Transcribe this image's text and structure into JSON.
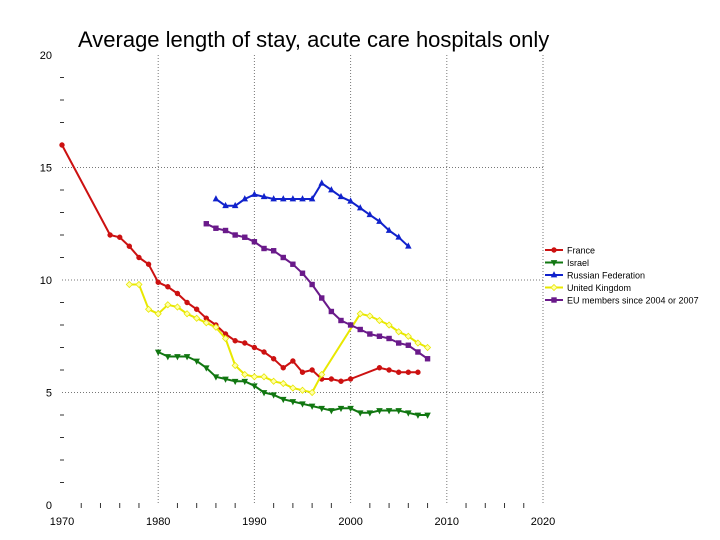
{
  "chart_data": {
    "type": "line",
    "title": "Average length of stay, acute care hospitals only",
    "xlabel": "",
    "ylabel": "",
    "xlim": [
      1970,
      2020
    ],
    "ylim": [
      0,
      20
    ],
    "x_ticks": [
      1970,
      1980,
      1990,
      2000,
      2010,
      2020
    ],
    "y_ticks": [
      0,
      5,
      10,
      15,
      20
    ],
    "grid": true,
    "legend_position": "right",
    "series": [
      {
        "name": "France",
        "color": "#cc1111",
        "marker": "circle",
        "points": [
          [
            1970,
            16.0
          ],
          [
            1975,
            12.0
          ],
          [
            1976,
            11.9
          ],
          [
            1977,
            11.5
          ],
          [
            1978,
            11.0
          ],
          [
            1979,
            10.7
          ],
          [
            1980,
            9.9
          ],
          [
            1981,
            9.7
          ],
          [
            1982,
            9.4
          ],
          [
            1983,
            9.0
          ],
          [
            1984,
            8.7
          ],
          [
            1985,
            8.3
          ],
          [
            1986,
            8.0
          ],
          [
            1987,
            7.6
          ],
          [
            1988,
            7.3
          ],
          [
            1989,
            7.2
          ],
          [
            1990,
            7.0
          ],
          [
            1991,
            6.8
          ],
          [
            1992,
            6.5
          ],
          [
            1993,
            6.1
          ],
          [
            1994,
            6.4
          ],
          [
            1995,
            5.9
          ],
          [
            1996,
            6.0
          ],
          [
            1997,
            5.6
          ],
          [
            1998,
            5.6
          ],
          [
            1999,
            5.5
          ],
          [
            2000,
            5.6
          ],
          [
            2003,
            6.1
          ],
          [
            2004,
            6.0
          ],
          [
            2005,
            5.9
          ],
          [
            2006,
            5.9
          ],
          [
            2007,
            5.9
          ]
        ]
      },
      {
        "name": "Israel",
        "color": "#117711",
        "marker": "triangle-down",
        "points": [
          [
            1980,
            6.8
          ],
          [
            1981,
            6.6
          ],
          [
            1982,
            6.6
          ],
          [
            1983,
            6.6
          ],
          [
            1984,
            6.4
          ],
          [
            1985,
            6.1
          ],
          [
            1986,
            5.7
          ],
          [
            1987,
            5.6
          ],
          [
            1988,
            5.5
          ],
          [
            1989,
            5.5
          ],
          [
            1990,
            5.3
          ],
          [
            1991,
            5.0
          ],
          [
            1992,
            4.9
          ],
          [
            1993,
            4.7
          ],
          [
            1994,
            4.6
          ],
          [
            1995,
            4.5
          ],
          [
            1996,
            4.4
          ],
          [
            1997,
            4.3
          ],
          [
            1998,
            4.2
          ],
          [
            1999,
            4.3
          ],
          [
            2000,
            4.3
          ],
          [
            2001,
            4.1
          ],
          [
            2002,
            4.1
          ],
          [
            2003,
            4.2
          ],
          [
            2004,
            4.2
          ],
          [
            2005,
            4.2
          ],
          [
            2006,
            4.1
          ],
          [
            2007,
            4.0
          ],
          [
            2008,
            4.0
          ]
        ]
      },
      {
        "name": "Russian Federation",
        "color": "#1122cc",
        "marker": "triangle-up",
        "points": [
          [
            1986,
            13.6
          ],
          [
            1987,
            13.3
          ],
          [
            1988,
            13.3
          ],
          [
            1989,
            13.6
          ],
          [
            1990,
            13.8
          ],
          [
            1991,
            13.7
          ],
          [
            1992,
            13.6
          ],
          [
            1993,
            13.6
          ],
          [
            1994,
            13.6
          ],
          [
            1995,
            13.6
          ],
          [
            1996,
            13.6
          ],
          [
            1997,
            14.3
          ],
          [
            1998,
            14.0
          ],
          [
            1999,
            13.7
          ],
          [
            2000,
            13.5
          ],
          [
            2001,
            13.2
          ],
          [
            2002,
            12.9
          ],
          [
            2003,
            12.6
          ],
          [
            2004,
            12.2
          ],
          [
            2005,
            11.9
          ],
          [
            2006,
            11.5
          ]
        ]
      },
      {
        "name": "United Kingdom",
        "color": "#e8e800",
        "marker": "diamond",
        "points": [
          [
            1977,
            9.8
          ],
          [
            1978,
            9.8
          ],
          [
            1979,
            8.7
          ],
          [
            1980,
            8.5
          ],
          [
            1981,
            8.9
          ],
          [
            1982,
            8.8
          ],
          [
            1983,
            8.5
          ],
          [
            1984,
            8.3
          ],
          [
            1985,
            8.1
          ],
          [
            1986,
            7.9
          ],
          [
            1987,
            7.4
          ],
          [
            1988,
            6.2
          ],
          [
            1989,
            5.8
          ],
          [
            1990,
            5.7
          ],
          [
            1991,
            5.7
          ],
          [
            1992,
            5.5
          ],
          [
            1993,
            5.4
          ],
          [
            1994,
            5.2
          ],
          [
            1995,
            5.1
          ],
          [
            1996,
            5.0
          ],
          [
            1997,
            5.8
          ],
          [
            2001,
            8.5
          ],
          [
            2002,
            8.4
          ],
          [
            2003,
            8.2
          ],
          [
            2004,
            8.0
          ],
          [
            2005,
            7.7
          ],
          [
            2006,
            7.5
          ],
          [
            2007,
            7.2
          ],
          [
            2008,
            7.0
          ]
        ]
      },
      {
        "name": "EU members since 2004 or 2007",
        "color": "#6a1a8a",
        "marker": "square",
        "points": [
          [
            1985,
            12.5
          ],
          [
            1986,
            12.3
          ],
          [
            1987,
            12.2
          ],
          [
            1988,
            12.0
          ],
          [
            1989,
            11.9
          ],
          [
            1990,
            11.7
          ],
          [
            1991,
            11.4
          ],
          [
            1992,
            11.3
          ],
          [
            1993,
            11.0
          ],
          [
            1994,
            10.7
          ],
          [
            1995,
            10.3
          ],
          [
            1996,
            9.8
          ],
          [
            1997,
            9.2
          ],
          [
            1998,
            8.6
          ],
          [
            1999,
            8.2
          ],
          [
            2000,
            8.0
          ],
          [
            2001,
            7.8
          ],
          [
            2002,
            7.6
          ],
          [
            2003,
            7.5
          ],
          [
            2004,
            7.4
          ],
          [
            2005,
            7.2
          ],
          [
            2006,
            7.1
          ],
          [
            2007,
            6.8
          ],
          [
            2008,
            6.5
          ]
        ]
      }
    ]
  }
}
